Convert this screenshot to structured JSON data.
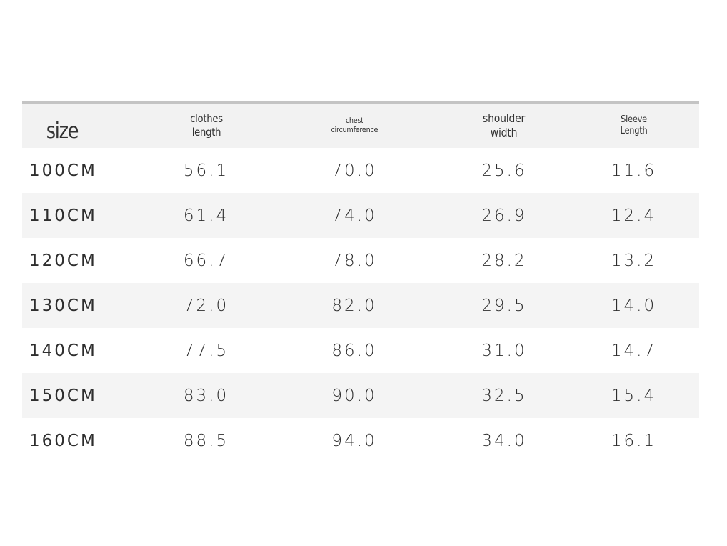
{
  "table": {
    "headers": {
      "size": "size",
      "clothes_length": [
        "clothes",
        "length"
      ],
      "chest_circumference": [
        "chest",
        "circumference"
      ],
      "shoulder_width": [
        "shoulder",
        "width"
      ],
      "sleeve_length": [
        "Sleeve",
        "Length"
      ]
    },
    "rows": [
      {
        "size": "100CM",
        "clothes_length": "56.1",
        "chest": "70.0",
        "shoulder": "25.6",
        "sleeve": "11.6"
      },
      {
        "size": "110CM",
        "clothes_length": "61.4",
        "chest": "74.0",
        "shoulder": "26.9",
        "sleeve": "12.4"
      },
      {
        "size": "120CM",
        "clothes_length": "66.7",
        "chest": "78.0",
        "shoulder": "28.2",
        "sleeve": "13.2"
      },
      {
        "size": "130CM",
        "clothes_length": "72.0",
        "chest": "82.0",
        "shoulder": "29.5",
        "sleeve": "14.0"
      },
      {
        "size": "140CM",
        "clothes_length": "77.5",
        "chest": "86.0",
        "shoulder": "31.0",
        "sleeve": "14.7"
      },
      {
        "size": "150CM",
        "clothes_length": "83.0",
        "chest": "90.0",
        "shoulder": "32.5",
        "sleeve": "15.4"
      },
      {
        "size": "160CM",
        "clothes_length": "88.5",
        "chest": "94.0",
        "shoulder": "34.0",
        "sleeve": "16.1"
      }
    ]
  }
}
